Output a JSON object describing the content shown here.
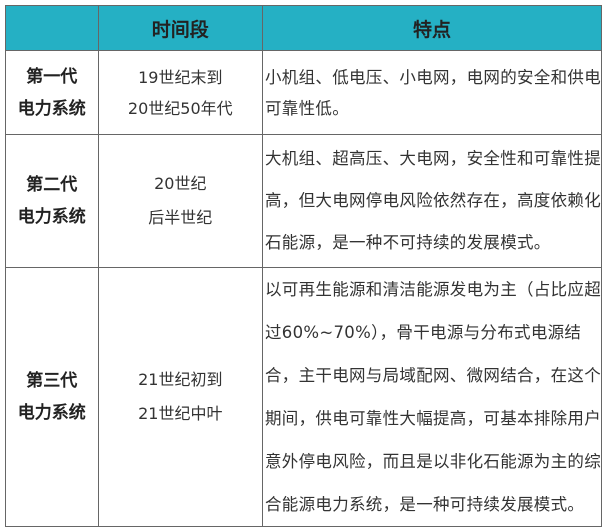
{
  "table": {
    "headers": [
      "",
      "时间段",
      "特点"
    ],
    "rows": [
      {
        "generation": [
          "第一代",
          "电力系统"
        ],
        "period": [
          "19世纪末到",
          "20世纪50年代"
        ],
        "features": [
          "小机组、低电压、小电网，电网的安全和供电",
          "可靠性低。"
        ]
      },
      {
        "generation": [
          "第二代",
          "电力系统"
        ],
        "period": [
          "20世纪",
          "后半世纪"
        ],
        "features": [
          "大机组、超高压、大电网，安全性和可靠性提",
          "高，但大电网停电风险依然存在，高度依赖化",
          "石能源，是一种不可持续的发展模式。"
        ]
      },
      {
        "generation": [
          "第三代",
          "电力系统"
        ],
        "period": [
          "21世纪初到",
          "21世纪中叶"
        ],
        "features": [
          "以可再生能源和清洁能源发电为主（占比应超",
          "过60%~70%），骨干电源与分布式电源结",
          "合，主干电网与局域配网、微网结合，在这个",
          "期间，供电可靠性大幅提高，可基本排除用户",
          "意外停电风险，而且是以非化石能源为主的综",
          "合能源电力系统，是一种可持续发展模式。"
        ]
      }
    ]
  },
  "colors": {
    "header_bg": "#25b0c4",
    "border": "#666666"
  }
}
